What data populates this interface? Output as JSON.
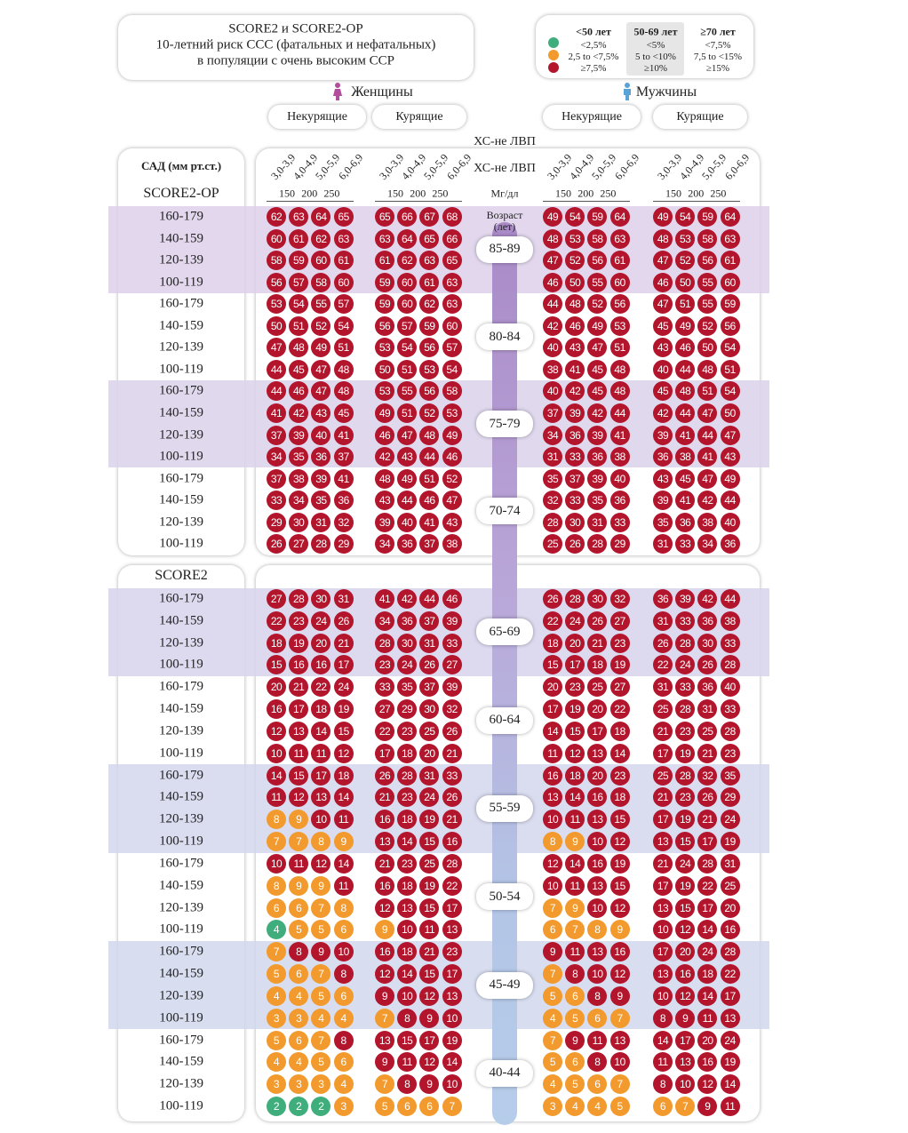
{
  "header": {
    "title": [
      "SCORE2 и SCORE2-OP",
      "10-летний риск ССС (фатальных и нефатальных)",
      "в популяции с очень высоким ССР"
    ]
  },
  "legend": {
    "colors": [
      "#3fae7c",
      "#f29a2e",
      "#b3152c"
    ],
    "groups": [
      {
        "label": "<50 лет",
        "items": [
          "<2,5%",
          "2,5 to <7,5%",
          "≥7,5%"
        ],
        "thresholds": [
          2.5,
          7.5
        ]
      },
      {
        "label": "50-69 лет",
        "items": [
          "<5%",
          "5 to <10%",
          "≥10%"
        ],
        "thresholds": [
          5,
          10
        ]
      },
      {
        "label": "≥70 лет",
        "items": [
          "<7,5%",
          "7,5 to <15%",
          "≥15%"
        ],
        "thresholds": [
          7.5,
          15
        ]
      }
    ]
  },
  "sex": [
    {
      "label": "Женщины",
      "groups": [
        "Некурящие",
        "Курящие"
      ]
    },
    {
      "label": "Мужчины",
      "groups": [
        "Некурящие",
        "Курящие"
      ]
    }
  ],
  "axis": {
    "title": "ХС-не ЛВП",
    "title2": "ХС-не ЛВП",
    "unit": "Мг/дл",
    "age_title": "Возраст (лет)",
    "mmol": [
      "3,0-3,9",
      "4,0-4,9",
      "5,0-5,9",
      "6,0-6,9"
    ],
    "mgdl": [
      "150",
      "200",
      "250"
    ]
  },
  "sbp_title": "САД (мм рт.ст.)",
  "sections": [
    {
      "label": "SCORE2-OP",
      "ages": [
        {
          "age": "85-89",
          "risk_group": 2,
          "rows": [
            {
              "sbp": "160-179",
              "values": [
                62,
                63,
                64,
                65,
                65,
                66,
                67,
                68,
                49,
                54,
                59,
                64,
                49,
                54,
                59,
                64
              ]
            },
            {
              "sbp": "140-159",
              "values": [
                60,
                61,
                62,
                63,
                63,
                64,
                65,
                66,
                48,
                53,
                58,
                63,
                48,
                53,
                58,
                63
              ]
            },
            {
              "sbp": "120-139",
              "values": [
                58,
                59,
                60,
                61,
                61,
                62,
                63,
                65,
                47,
                52,
                56,
                61,
                47,
                52,
                56,
                61
              ]
            },
            {
              "sbp": "100-119",
              "values": [
                56,
                57,
                58,
                60,
                59,
                60,
                61,
                63,
                46,
                50,
                55,
                60,
                46,
                50,
                55,
                60
              ]
            }
          ]
        },
        {
          "age": "80-84",
          "risk_group": 2,
          "rows": [
            {
              "sbp": "160-179",
              "values": [
                53,
                54,
                55,
                57,
                59,
                60,
                62,
                63,
                44,
                48,
                52,
                56,
                47,
                51,
                55,
                59
              ]
            },
            {
              "sbp": "140-159",
              "values": [
                50,
                51,
                52,
                54,
                56,
                57,
                59,
                60,
                42,
                46,
                49,
                53,
                45,
                49,
                52,
                56
              ]
            },
            {
              "sbp": "120-139",
              "values": [
                47,
                48,
                49,
                51,
                53,
                54,
                56,
                57,
                40,
                43,
                47,
                51,
                43,
                46,
                50,
                54
              ]
            },
            {
              "sbp": "100-119",
              "values": [
                44,
                45,
                47,
                48,
                50,
                51,
                53,
                54,
                38,
                41,
                45,
                48,
                40,
                44,
                48,
                51
              ]
            }
          ]
        },
        {
          "age": "75-79",
          "risk_group": 2,
          "rows": [
            {
              "sbp": "160-179",
              "values": [
                44,
                46,
                47,
                48,
                53,
                55,
                56,
                58,
                40,
                42,
                45,
                48,
                45,
                48,
                51,
                54
              ]
            },
            {
              "sbp": "140-159",
              "values": [
                41,
                42,
                43,
                45,
                49,
                51,
                52,
                53,
                37,
                39,
                42,
                44,
                42,
                44,
                47,
                50
              ]
            },
            {
              "sbp": "120-139",
              "values": [
                37,
                39,
                40,
                41,
                46,
                47,
                48,
                49,
                34,
                36,
                39,
                41,
                39,
                41,
                44,
                47
              ]
            },
            {
              "sbp": "100-119",
              "values": [
                34,
                35,
                36,
                37,
                42,
                43,
                44,
                46,
                31,
                33,
                36,
                38,
                36,
                38,
                41,
                43
              ]
            }
          ]
        },
        {
          "age": "70-74",
          "risk_group": 2,
          "rows": [
            {
              "sbp": "160-179",
              "values": [
                37,
                38,
                39,
                41,
                48,
                49,
                51,
                52,
                35,
                37,
                39,
                40,
                43,
                45,
                47,
                49
              ]
            },
            {
              "sbp": "140-159",
              "values": [
                33,
                34,
                35,
                36,
                43,
                44,
                46,
                47,
                32,
                33,
                35,
                36,
                39,
                41,
                42,
                44
              ]
            },
            {
              "sbp": "120-139",
              "values": [
                29,
                30,
                31,
                32,
                39,
                40,
                41,
                43,
                28,
                30,
                31,
                33,
                35,
                36,
                38,
                40
              ]
            },
            {
              "sbp": "100-119",
              "values": [
                26,
                27,
                28,
                29,
                34,
                36,
                37,
                38,
                25,
                26,
                28,
                29,
                31,
                33,
                34,
                36
              ]
            }
          ]
        }
      ]
    },
    {
      "label": "SCORE2",
      "ages": [
        {
          "age": "65-69",
          "risk_group": 1,
          "rows": [
            {
              "sbp": "160-179",
              "values": [
                27,
                28,
                30,
                31,
                41,
                42,
                44,
                46,
                26,
                28,
                30,
                32,
                36,
                39,
                42,
                44
              ]
            },
            {
              "sbp": "140-159",
              "values": [
                22,
                23,
                24,
                26,
                34,
                36,
                37,
                39,
                22,
                24,
                26,
                27,
                31,
                33,
                36,
                38
              ]
            },
            {
              "sbp": "120-139",
              "values": [
                18,
                19,
                20,
                21,
                28,
                30,
                31,
                33,
                18,
                20,
                21,
                23,
                26,
                28,
                30,
                33
              ]
            },
            {
              "sbp": "100-119",
              "values": [
                15,
                16,
                16,
                17,
                23,
                24,
                26,
                27,
                15,
                17,
                18,
                19,
                22,
                24,
                26,
                28
              ]
            }
          ]
        },
        {
          "age": "60-64",
          "risk_group": 1,
          "rows": [
            {
              "sbp": "160-179",
              "values": [
                20,
                21,
                22,
                24,
                33,
                35,
                37,
                39,
                20,
                23,
                25,
                27,
                31,
                33,
                36,
                40
              ]
            },
            {
              "sbp": "140-159",
              "values": [
                16,
                17,
                18,
                19,
                27,
                29,
                30,
                32,
                17,
                19,
                20,
                22,
                25,
                28,
                31,
                33
              ]
            },
            {
              "sbp": "120-139",
              "values": [
                12,
                13,
                14,
                15,
                22,
                23,
                25,
                26,
                14,
                15,
                17,
                18,
                21,
                23,
                25,
                28
              ]
            },
            {
              "sbp": "100-119",
              "values": [
                10,
                11,
                11,
                12,
                17,
                18,
                20,
                21,
                11,
                12,
                13,
                14,
                17,
                19,
                21,
                23
              ]
            }
          ]
        },
        {
          "age": "55-59",
          "risk_group": 1,
          "rows": [
            {
              "sbp": "160-179",
              "values": [
                14,
                15,
                17,
                18,
                26,
                28,
                31,
                33,
                16,
                18,
                20,
                23,
                25,
                28,
                32,
                35
              ]
            },
            {
              "sbp": "140-159",
              "values": [
                11,
                12,
                13,
                14,
                21,
                23,
                24,
                26,
                13,
                14,
                16,
                18,
                21,
                23,
                26,
                29
              ]
            },
            {
              "sbp": "120-139",
              "values": [
                8,
                9,
                10,
                11,
                16,
                18,
                19,
                21,
                10,
                11,
                13,
                15,
                17,
                19,
                21,
                24
              ]
            },
            {
              "sbp": "100-119",
              "values": [
                7,
                7,
                8,
                9,
                13,
                14,
                15,
                16,
                8,
                9,
                10,
                12,
                13,
                15,
                17,
                19
              ]
            }
          ]
        },
        {
          "age": "50-54",
          "risk_group": 1,
          "rows": [
            {
              "sbp": "160-179",
              "values": [
                10,
                11,
                12,
                14,
                21,
                23,
                25,
                28,
                12,
                14,
                16,
                19,
                21,
                24,
                28,
                31
              ]
            },
            {
              "sbp": "140-159",
              "values": [
                8,
                9,
                9,
                11,
                16,
                18,
                19,
                22,
                10,
                11,
                13,
                15,
                17,
                19,
                22,
                25
              ]
            },
            {
              "sbp": "120-139",
              "values": [
                6,
                6,
                7,
                8,
                12,
                13,
                15,
                17,
                7,
                9,
                10,
                12,
                13,
                15,
                17,
                20
              ]
            },
            {
              "sbp": "100-119",
              "values": [
                4,
                5,
                5,
                6,
                9,
                10,
                11,
                13,
                6,
                7,
                8,
                9,
                10,
                12,
                14,
                16
              ]
            }
          ]
        },
        {
          "age": "45-49",
          "risk_group": 0,
          "rows": [
            {
              "sbp": "160-179",
              "values": [
                7,
                8,
                9,
                10,
                16,
                18,
                21,
                23,
                9,
                11,
                13,
                16,
                17,
                20,
                24,
                28
              ]
            },
            {
              "sbp": "140-159",
              "values": [
                5,
                6,
                7,
                8,
                12,
                14,
                15,
                17,
                7,
                8,
                10,
                12,
                13,
                16,
                18,
                22
              ]
            },
            {
              "sbp": "120-139",
              "values": [
                4,
                4,
                5,
                6,
                9,
                10,
                12,
                13,
                5,
                6,
                8,
                9,
                10,
                12,
                14,
                17
              ]
            },
            {
              "sbp": "100-119",
              "values": [
                3,
                3,
                4,
                4,
                7,
                8,
                9,
                10,
                4,
                5,
                6,
                7,
                8,
                9,
                11,
                13
              ]
            }
          ]
        },
        {
          "age": "40-44",
          "risk_group": 0,
          "rows": [
            {
              "sbp": "160-179",
              "values": [
                5,
                6,
                7,
                8,
                13,
                15,
                17,
                19,
                7,
                9,
                11,
                13,
                14,
                17,
                20,
                24
              ]
            },
            {
              "sbp": "140-159",
              "values": [
                4,
                4,
                5,
                6,
                9,
                11,
                12,
                14,
                5,
                6,
                8,
                10,
                11,
                13,
                16,
                19
              ]
            },
            {
              "sbp": "120-139",
              "values": [
                3,
                3,
                3,
                4,
                7,
                8,
                9,
                10,
                4,
                5,
                6,
                7,
                8,
                10,
                12,
                14
              ]
            },
            {
              "sbp": "100-119",
              "values": [
                2,
                2,
                2,
                3,
                5,
                6,
                6,
                7,
                3,
                4,
                4,
                5,
                6,
                7,
                9,
                11
              ]
            }
          ]
        }
      ]
    }
  ]
}
